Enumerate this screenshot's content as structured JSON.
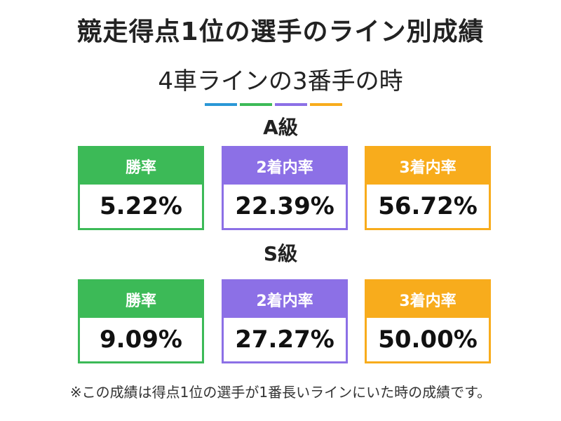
{
  "title": "競走得点1位の選手のライン別成績",
  "subtitle": "4車ラインの3番手の時",
  "colors": {
    "green": "#3cba57",
    "purple": "#8c70e6",
    "orange": "#f8ac1c",
    "blue": "#2a97d6"
  },
  "grades": [
    {
      "label": "A級",
      "cards": [
        {
          "header": "勝率",
          "value": "5.22%",
          "color": "green"
        },
        {
          "header": "2着内率",
          "value": "22.39%",
          "color": "purple"
        },
        {
          "header": "3着内率",
          "value": "56.72%",
          "color": "orange"
        }
      ]
    },
    {
      "label": "S級",
      "cards": [
        {
          "header": "勝率",
          "value": "9.09%",
          "color": "green"
        },
        {
          "header": "2着内率",
          "value": "27.27%",
          "color": "purple"
        },
        {
          "header": "3着内率",
          "value": "50.00%",
          "color": "orange"
        }
      ]
    }
  ],
  "note": "※この成績は得点1位の選手が1番長いラインにいた時の成績です。"
}
